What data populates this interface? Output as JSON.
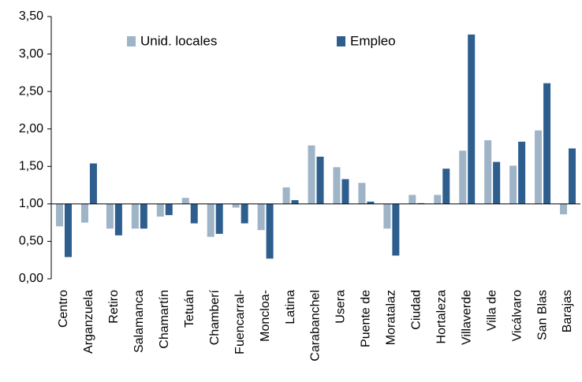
{
  "chart_data": {
    "type": "bar",
    "categories": [
      "Centro",
      "Arganzuela",
      "Retiro",
      "Salamanca",
      "Chamartín",
      "Tetuán",
      "Chamberí",
      "Fuencarral-",
      "Moncloa-",
      "Latina",
      "Carabanchel",
      "Usera",
      "Puente de",
      "Moratalaz",
      "Ciudad",
      "Hortaleza",
      "Villaverde",
      "Villa de",
      "Vicálvaro",
      "San Blas",
      "Barajas"
    ],
    "series": [
      {
        "name": "Unid. locales",
        "color": "#9fb4c7",
        "values": [
          0.7,
          0.75,
          0.67,
          0.67,
          0.83,
          1.08,
          0.56,
          0.95,
          0.65,
          1.22,
          1.78,
          1.49,
          1.28,
          0.67,
          1.12,
          1.12,
          1.71,
          1.85,
          1.51,
          1.98,
          0.86
        ]
      },
      {
        "name": "Empleo",
        "color": "#2e5e8e",
        "values": [
          0.29,
          1.54,
          0.58,
          0.67,
          0.85,
          0.74,
          0.6,
          0.74,
          0.27,
          1.05,
          1.63,
          1.33,
          1.03,
          0.31,
          1.01,
          1.47,
          3.26,
          1.56,
          1.83,
          2.61,
          1.74
        ]
      }
    ],
    "ylim": [
      0,
      3.5
    ],
    "yticks": [
      {
        "value": 0,
        "label": "0,00"
      },
      {
        "value": 0.5,
        "label": "0,50"
      },
      {
        "value": 1,
        "label": "1,00"
      },
      {
        "value": 1.5,
        "label": "1,50"
      },
      {
        "value": 2,
        "label": "2,00"
      },
      {
        "value": 2.5,
        "label": "2,50"
      },
      {
        "value": 3,
        "label": "3,00"
      },
      {
        "value": 3.5,
        "label": "3,50"
      }
    ],
    "baseline": 1,
    "grid": false
  }
}
